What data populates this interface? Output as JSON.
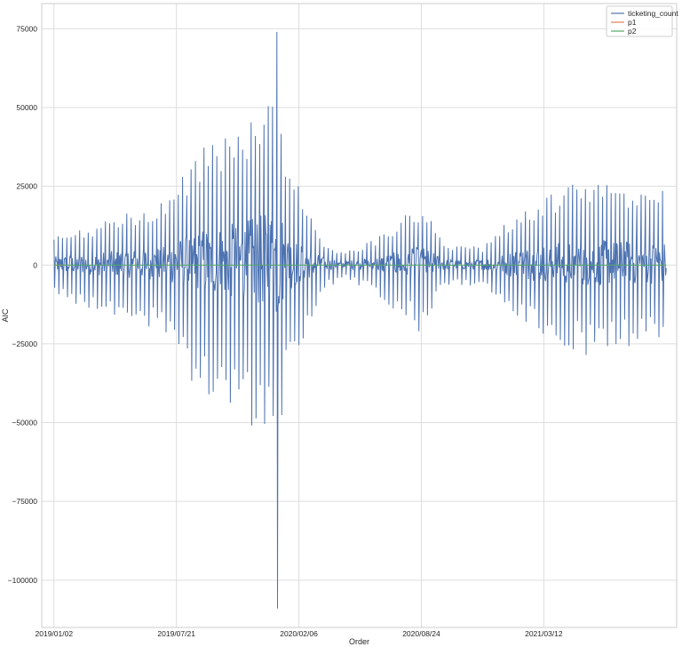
{
  "chart_data": {
    "type": "line",
    "title": "",
    "xlabel": "Order",
    "ylabel": "AIC",
    "x_tick_labels": [
      "2019/01/02",
      "2019/07/21",
      "2020/02/06",
      "2020/08/24",
      "2021/03/12"
    ],
    "x_range_days": [
      -20,
      1017
    ],
    "ylim": [
      -115000,
      83000
    ],
    "y_ticks": [
      75000,
      50000,
      25000,
      0,
      -25000,
      -50000,
      -75000,
      -100000
    ],
    "y_tick_labels": [
      "75000",
      "50000",
      "25000",
      "0",
      "−25000",
      "−50000",
      "−75000",
      "−100000"
    ],
    "grid": true,
    "legend_position": "top-right",
    "series": [
      {
        "name": "ticketing_count",
        "color": "#4c72b0",
        "x_range": [
          0,
          1000
        ],
        "peak_amplitude_envelope": [
          {
            "x": 0,
            "amp": 9000
          },
          {
            "x": 80,
            "amp": 14000
          },
          {
            "x": 180,
            "amp": 20000
          },
          {
            "x": 240,
            "amp": 38000
          },
          {
            "x": 300,
            "amp": 45000
          },
          {
            "x": 350,
            "amp": 55000
          },
          {
            "x": 364,
            "amp": 74000
          },
          {
            "x": 380,
            "amp": 35000
          },
          {
            "x": 410,
            "amp": 20000
          },
          {
            "x": 440,
            "amp": 8000
          },
          {
            "x": 470,
            "amp": 4000
          },
          {
            "x": 520,
            "amp": 8000
          },
          {
            "x": 600,
            "amp": 20000
          },
          {
            "x": 640,
            "amp": 6000
          },
          {
            "x": 700,
            "amp": 6000
          },
          {
            "x": 760,
            "amp": 18000
          },
          {
            "x": 860,
            "amp": 27000
          },
          {
            "x": 1000,
            "amp": 24000
          }
        ],
        "max_value": 74000,
        "min_value": -109000
      },
      {
        "name": "p1",
        "color": "#dd8452",
        "value": 0
      },
      {
        "name": "p2",
        "color": "#55a868",
        "value": 0
      }
    ]
  }
}
